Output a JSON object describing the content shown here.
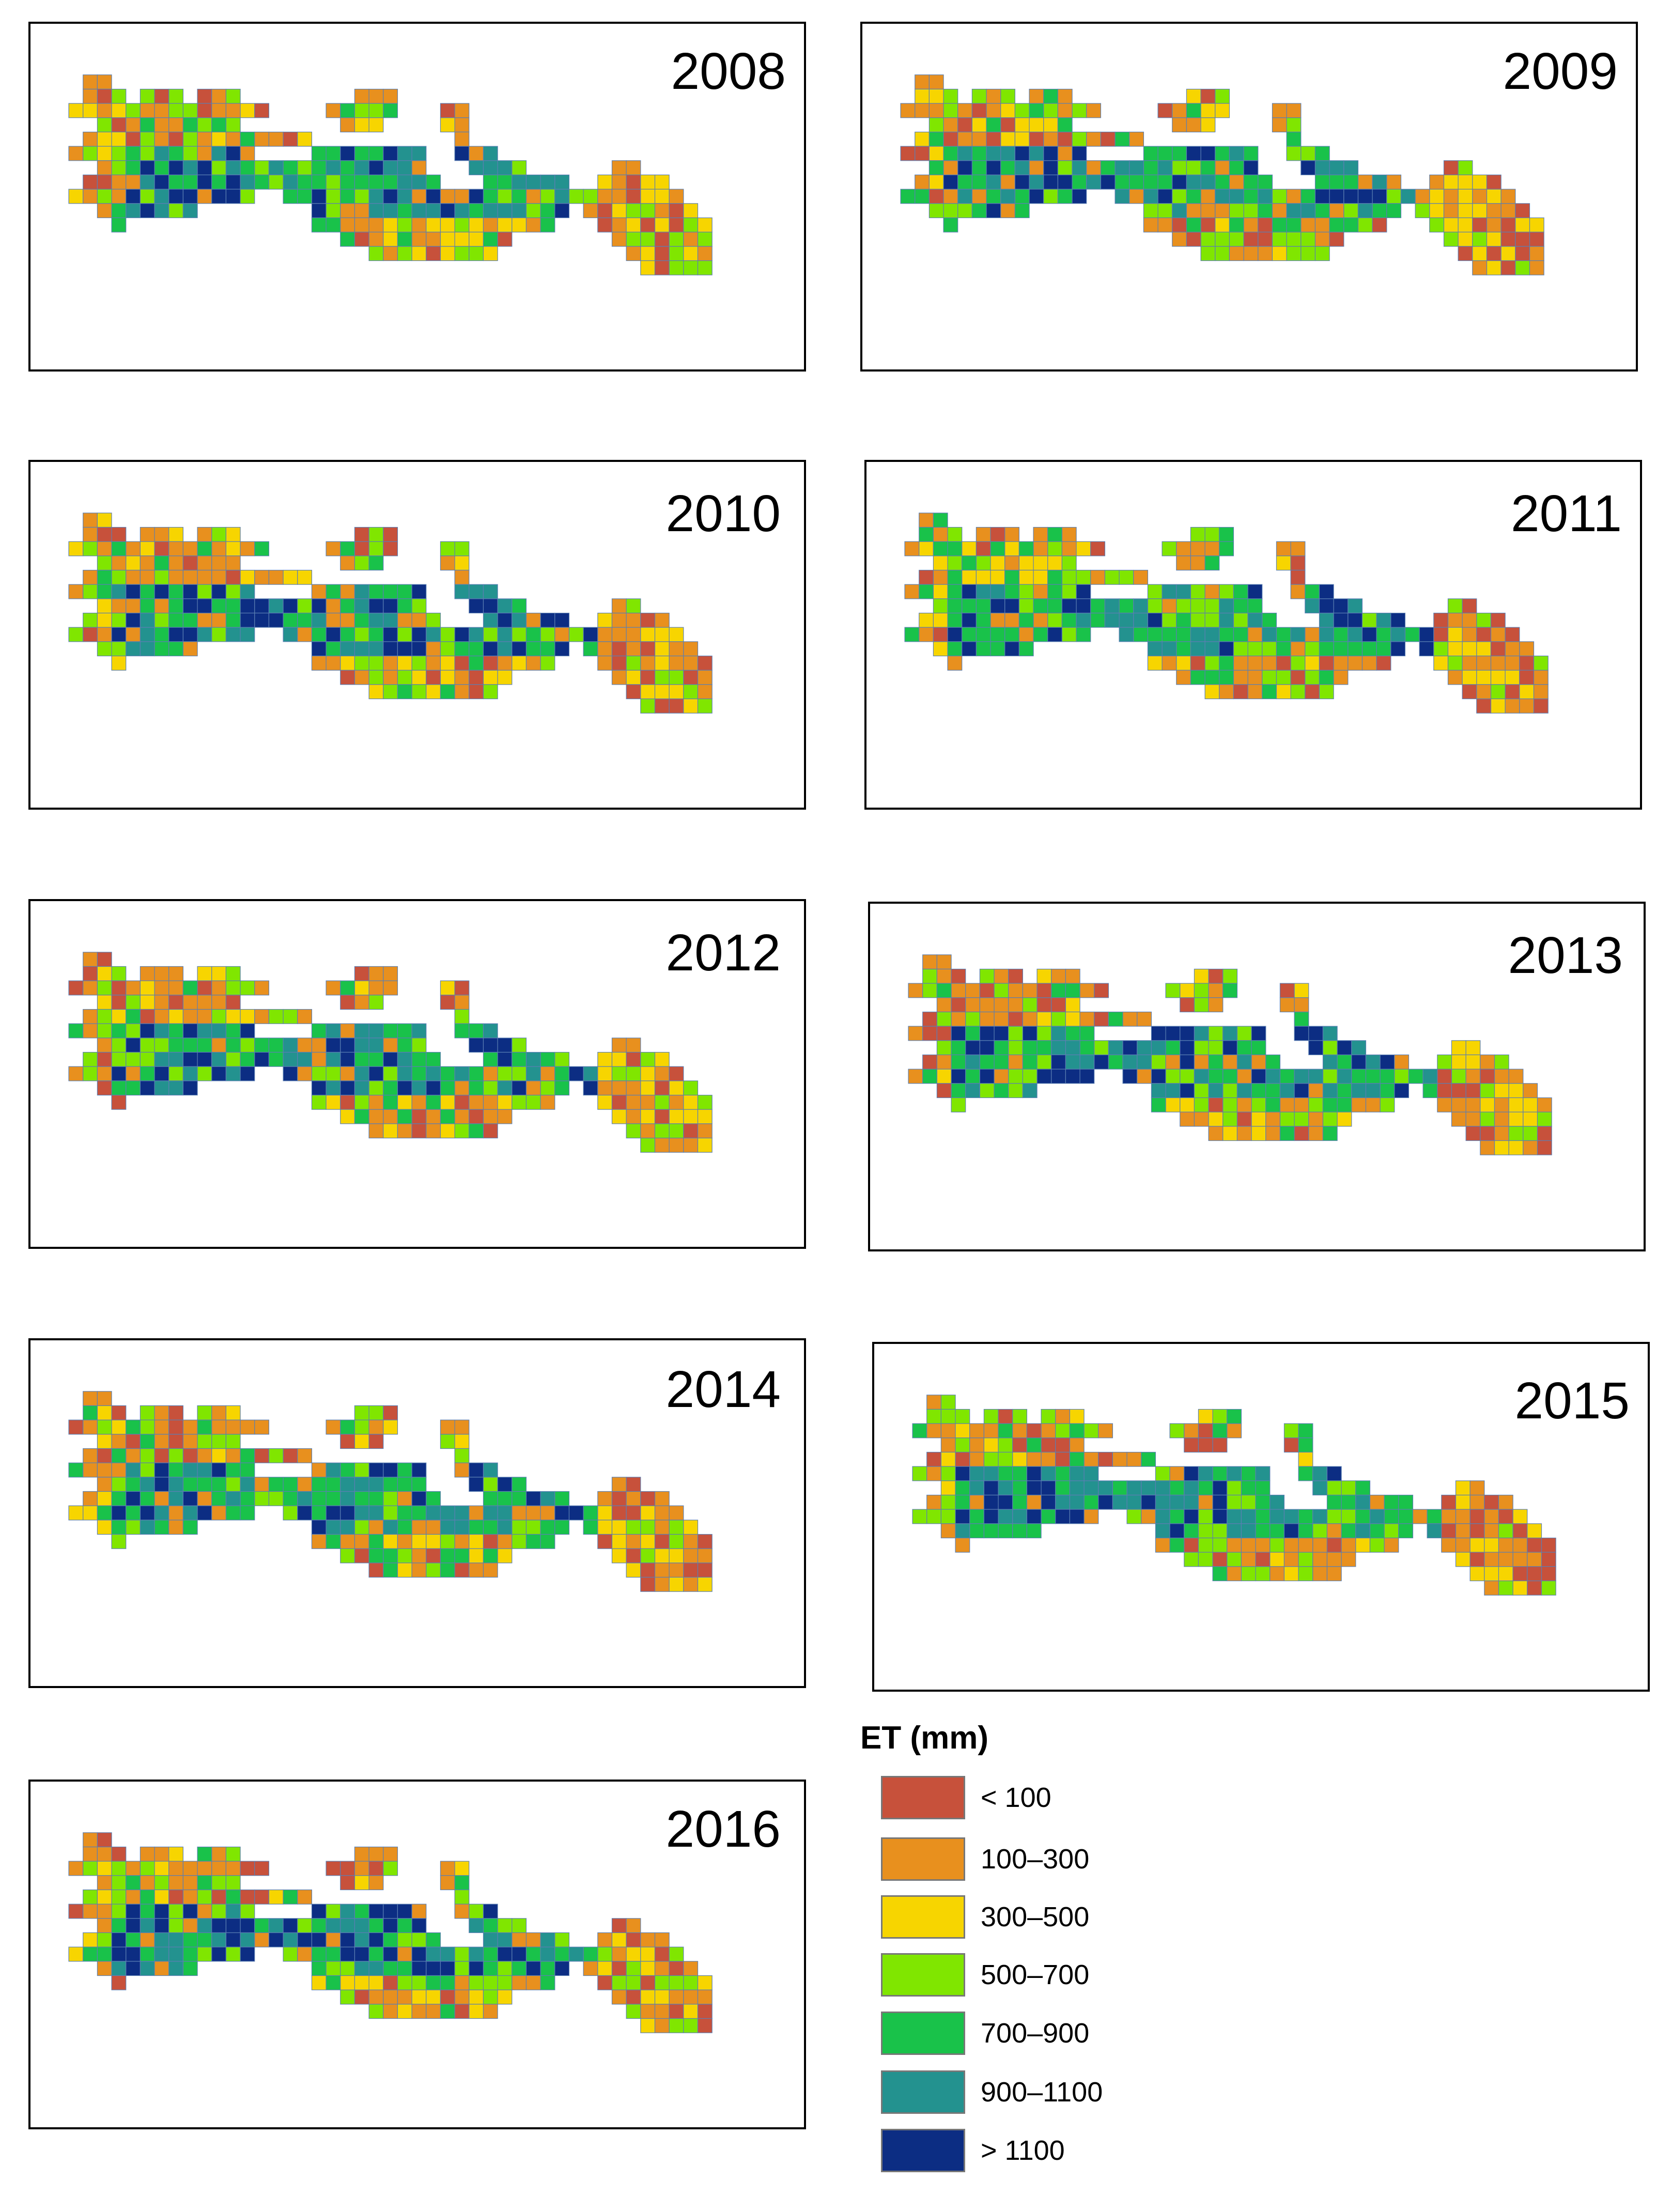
{
  "legend": {
    "title": "ET (mm)",
    "classes": [
      {
        "label": "< 100",
        "color": "#c7513b"
      },
      {
        "label": "100–300",
        "color": "#e8901e"
      },
      {
        "label": "300–500",
        "color": "#f7d500"
      },
      {
        "label": "500–700",
        "color": "#80e600"
      },
      {
        "label": "700–900",
        "color": "#19c24a"
      },
      {
        "label": "900–1100",
        "color": "#23928f"
      },
      {
        "label": "> 1100",
        "color": "#0c2d83"
      }
    ]
  },
  "panels": [
    {
      "year": "2008",
      "seed": 11
    },
    {
      "year": "2009",
      "seed": 23
    },
    {
      "year": "2010",
      "seed": 37
    },
    {
      "year": "2011",
      "seed": 41
    },
    {
      "year": "2012",
      "seed": 53
    },
    {
      "year": "2013",
      "seed": 67
    },
    {
      "year": "2014",
      "seed": 79
    },
    {
      "year": "2015",
      "seed": 83
    },
    {
      "year": "2016",
      "seed": 97
    }
  ]
}
